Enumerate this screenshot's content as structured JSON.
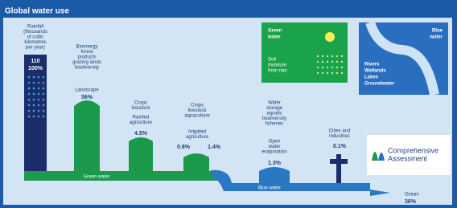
{
  "title": "Global water use",
  "nodes": [
    {
      "description": [
        "Rainfall",
        "(thousands",
        "of cubic",
        "kilometres",
        "per year)"
      ],
      "use": [],
      "share": [
        "110",
        "100%"
      ]
    },
    {
      "description": [
        "Bioenergy",
        "forest",
        "products",
        "grazing lands",
        "biodiversity"
      ],
      "use": [
        "Landscape"
      ],
      "share": [
        "56%"
      ]
    },
    {
      "description": [
        "Crops",
        "livestock"
      ],
      "use": [
        "Rainfed",
        "agriculture"
      ],
      "share": [
        "4.5%"
      ]
    },
    {
      "description": [
        "Crops",
        "livestock",
        "aquaculture"
      ],
      "use": [
        "Irrigated",
        "agriculture"
      ],
      "share": [
        "0.6%",
        "1.4%"
      ]
    },
    {
      "description": [
        "Water",
        "storage",
        "aquatic",
        "biodiversity",
        "fisheries"
      ],
      "use": [
        "Open",
        "water",
        "evaporation"
      ],
      "share": [
        "1.3%"
      ]
    },
    {
      "description": [
        "Cities and",
        "industries"
      ],
      "use": [],
      "share": [
        "0.1%"
      ]
    },
    {
      "description": [],
      "use": [
        "Ocean"
      ],
      "share": [
        "36%"
      ]
    }
  ],
  "flows": {
    "green": "Green water",
    "blue": "Blue water"
  },
  "legend": {
    "green": {
      "title": [
        "Green",
        "water"
      ],
      "text": [
        "Soil",
        "moisture",
        "from rain"
      ]
    },
    "blue": {
      "title": [
        "Blue",
        "water"
      ],
      "text": [
        "Rivers",
        "Wetlands",
        "Lakes",
        "Groundwater"
      ]
    }
  },
  "logo": [
    "Comprehensive",
    "Assessment"
  ]
}
